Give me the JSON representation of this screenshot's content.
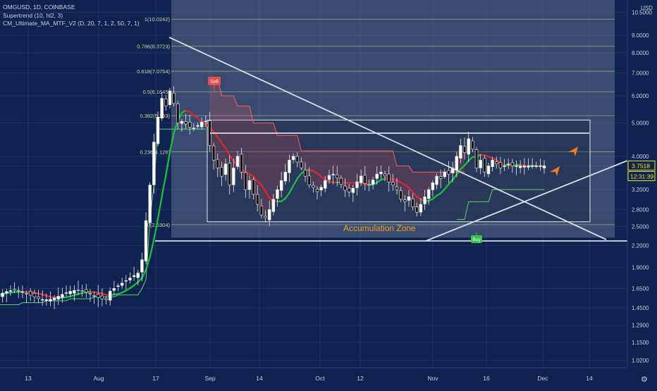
{
  "legend": {
    "symbol": "OMGUSD, 1D, COINBASE",
    "indicator1": "Supertrend (10, hl2, 3)",
    "indicator2": "CM_Ultimate_MA_MTF_V2 (D, 20, 7, 1, 2, 50, 7, 1)"
  },
  "currency": "USD",
  "colors": {
    "background": "#0f2350",
    "grid": "#1d3566",
    "up_candle": "#ffffff",
    "down_candle": "#111111",
    "supertrend_up": "#5fd16a",
    "supertrend_down": "#ff5a5a",
    "ma_green": "#17c43b",
    "ma_red": "#e0262b",
    "trendline": "#d9dde4",
    "fib_line": "#b9c47a",
    "accumulation_text": "#f0a020",
    "arrow": "#f07a1e",
    "sell_badge": "#ef4a4a",
    "buy_badge": "#37c24a",
    "price_badge": "#f7e51c"
  },
  "badges": {
    "sell": "Sell",
    "buy": "Buy"
  },
  "chart_data": {
    "type": "candlestick",
    "symbol": "OMGUSD",
    "timeframe": "1D",
    "exchange": "COINBASE",
    "y_axis": {
      "scale": "log",
      "unit": "USD",
      "ticks": [
        1.02,
        1.15,
        1.29,
        1.45,
        1.65,
        1.9,
        2.2,
        2.5,
        2.8,
        3.2,
        3.7518,
        4.0,
        5.0,
        6.0,
        7.0,
        8.0,
        9.0,
        10.5
      ]
    },
    "x_axis": {
      "tick_labels": [
        "13",
        "Aug",
        "17",
        "Sep",
        "14",
        "Oct",
        "12",
        "Nov",
        "16",
        "Dec",
        "14"
      ]
    },
    "last_price": "3.7518",
    "countdown": "12:31:39",
    "fibonacci": [
      {
        "level": "1",
        "price": 10.0242,
        "label": "1(10.0242)"
      },
      {
        "level": "0.786",
        "price": 8.3723,
        "label": "0.786(8.3723)"
      },
      {
        "level": "0.618",
        "price": 7.0754,
        "label": "0.618(7.0754)"
      },
      {
        "level": "0.5",
        "price": 6.1645,
        "label": "0.5(6.1645)"
      },
      {
        "level": "0.382",
        "price": 5.253,
        "label": "0.382(5.253)"
      },
      {
        "level": "0.236",
        "price": 4.126,
        "label": "0.236(4.126)"
      },
      {
        "level": "0",
        "price": 2.5304,
        "label": "0(2.5304)"
      }
    ],
    "annotations": {
      "zone_label": "Accumulation Zone",
      "zone_top": 5.1,
      "zone_bottom": 2.58
    },
    "candles_note": "values estimated from the chart; open, high, low, close"
  }
}
